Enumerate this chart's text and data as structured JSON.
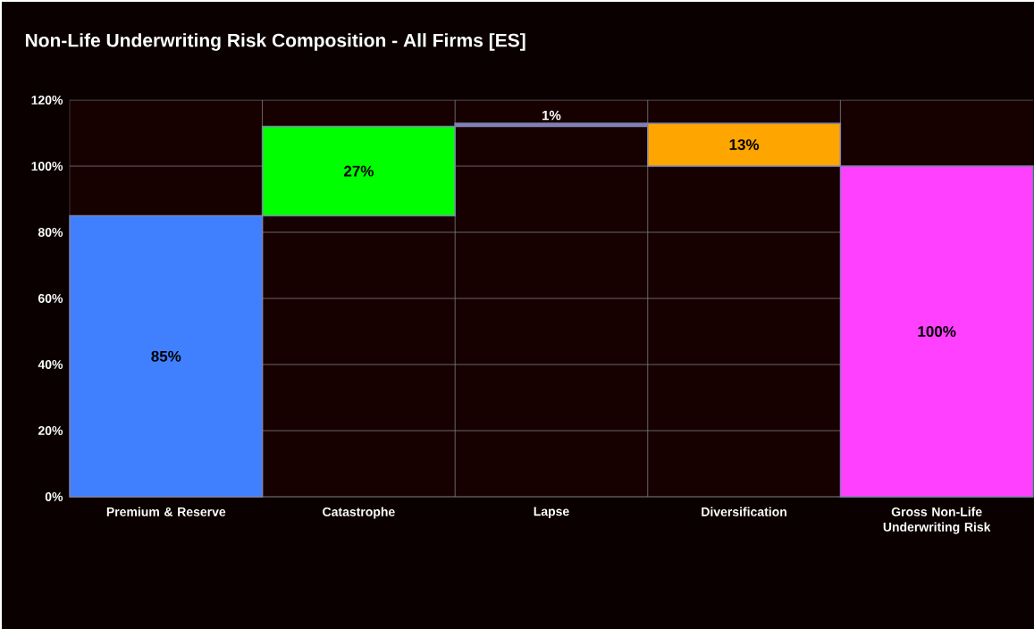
{
  "chart_data": {
    "type": "bar",
    "title": "Non-Life Underwriting Risk Composition  - All Firms [ES]",
    "categories": [
      "Premium & Reserve",
      "Catastrophe",
      "Lapse",
      "Diversification",
      "Gross Non-Life Underwriting Risk"
    ],
    "values": [
      85,
      27,
      1,
      -13,
      100
    ],
    "base": [
      0,
      85,
      112,
      113,
      0
    ],
    "colors": [
      "#4080ff",
      "#00ff00",
      "#8080b8",
      "#ffa500",
      "#ff40ff"
    ],
    "value_labels": [
      "85%",
      "27%",
      "1%",
      "13%",
      "100%"
    ],
    "ylim": [
      0,
      120
    ],
    "yticks": [
      {
        "value": 0,
        "label": "0%"
      },
      {
        "value": 20,
        "label": "20%"
      },
      {
        "value": 40,
        "label": "40%"
      },
      {
        "value": 60,
        "label": "60%"
      },
      {
        "value": 80,
        "label": "80%"
      },
      {
        "value": 100,
        "label": "100%"
      },
      {
        "value": 120,
        "label": "120%"
      }
    ],
    "grid": true
  }
}
